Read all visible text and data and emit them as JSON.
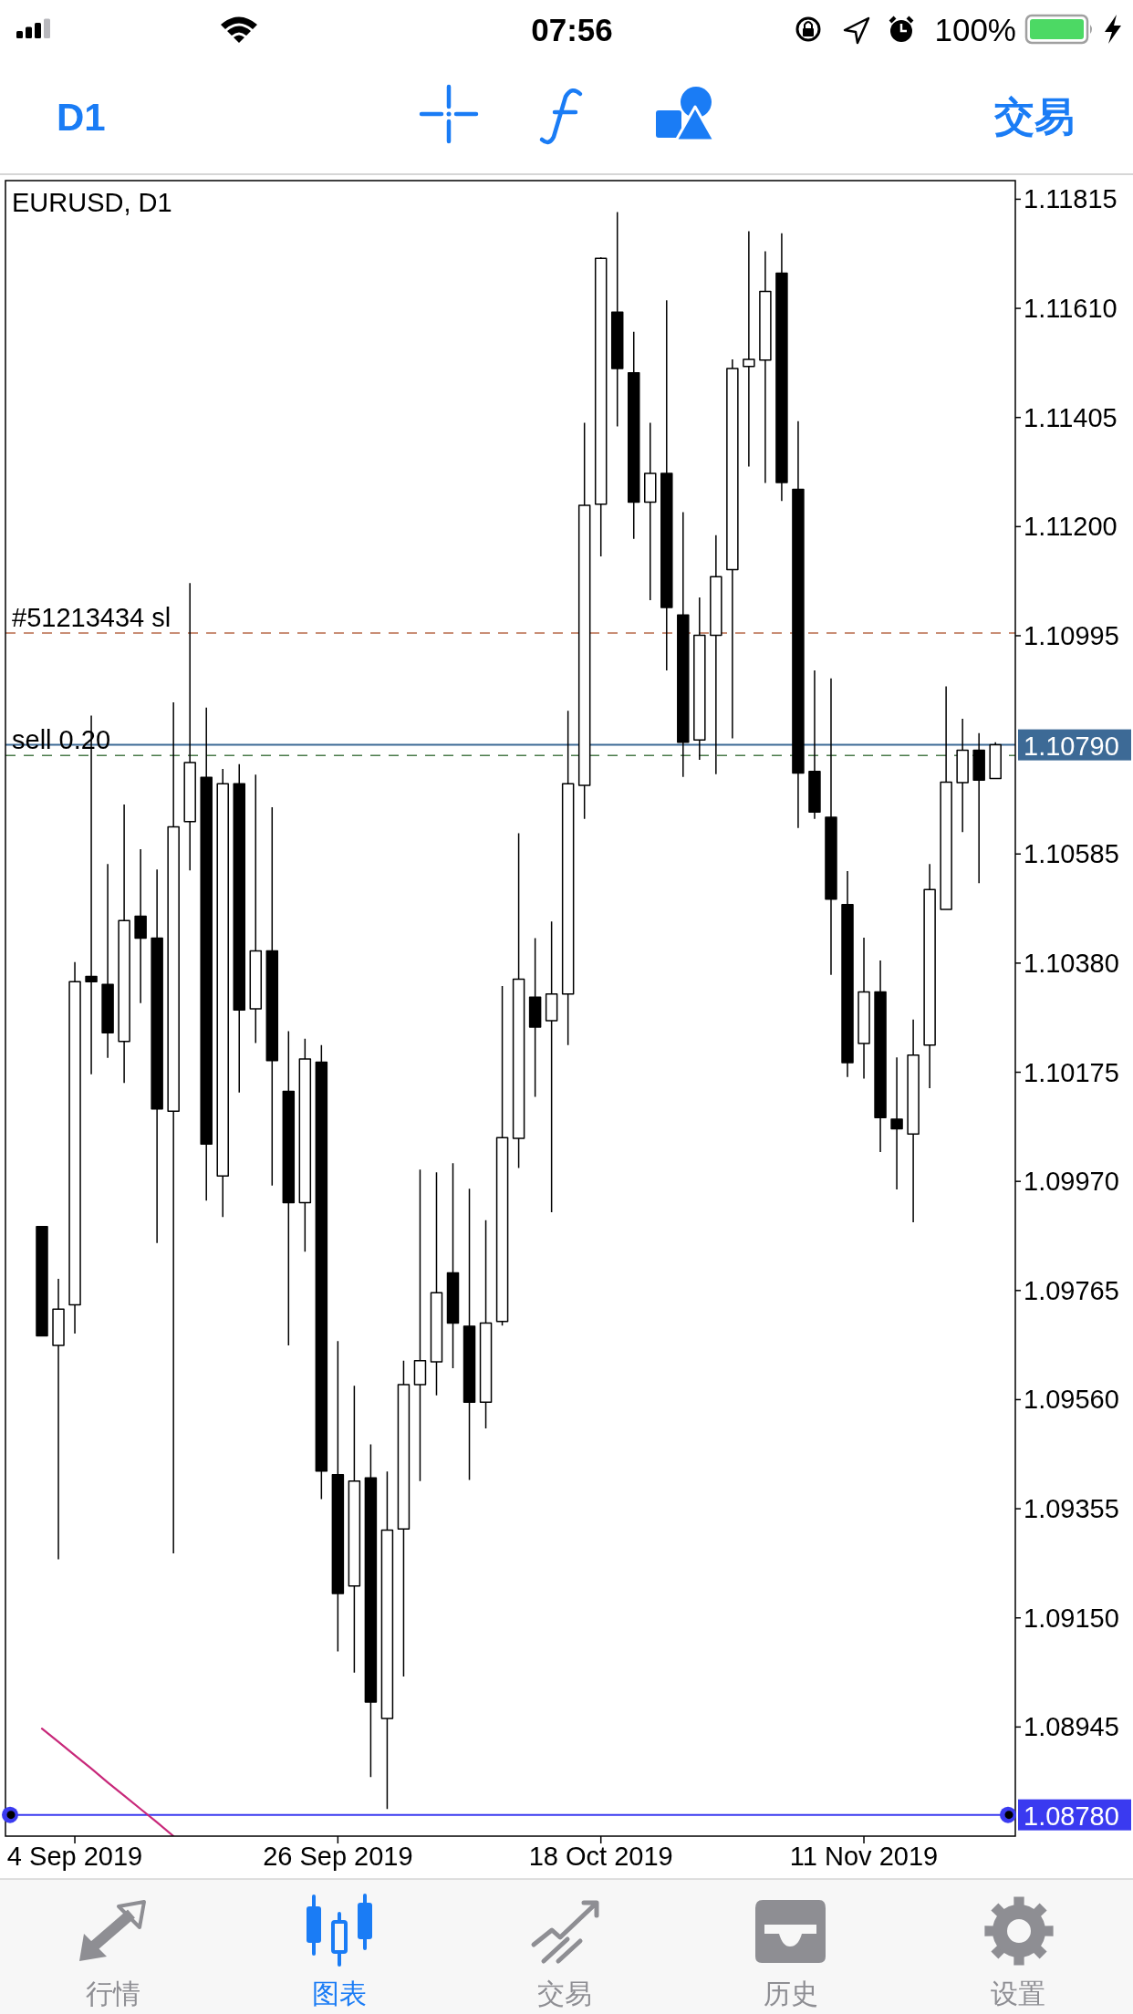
{
  "chart_data": {
    "type": "candlestick",
    "title": "EURUSD, D1",
    "categories": [
      null,
      null,
      "4 Sep 2019",
      null,
      null,
      null,
      null,
      null,
      null,
      null,
      null,
      null,
      null,
      null,
      null,
      null,
      null,
      null,
      "26 Sep 2019",
      null,
      null,
      null,
      null,
      null,
      null,
      null,
      null,
      null,
      null,
      null,
      null,
      null,
      null,
      null,
      "18 Oct 2019",
      null,
      null,
      null,
      null,
      null,
      null,
      null,
      null,
      null,
      null,
      null,
      null,
      null,
      null,
      null,
      "11 Nov 2019",
      null,
      null,
      null,
      null,
      null,
      null,
      null,
      null
    ],
    "ohlc": [
      [
        1.09885,
        1.09885,
        1.0968,
        1.0968
      ],
      [
        1.09662,
        1.09787,
        1.0926,
        1.0973
      ],
      [
        1.09738,
        1.10382,
        1.09684,
        1.10345
      ],
      [
        1.10355,
        1.10845,
        1.10171,
        1.10345
      ],
      [
        1.1034,
        1.10566,
        1.10202,
        1.10249
      ],
      [
        1.10233,
        1.10678,
        1.10155,
        1.1046
      ],
      [
        1.10468,
        1.10594,
        1.10305,
        1.10427
      ],
      [
        1.10427,
        1.10556,
        1.09854,
        1.10106
      ],
      [
        1.10102,
        1.1087,
        1.09271,
        1.10636
      ],
      [
        1.10646,
        1.11094,
        1.10554,
        1.10757
      ],
      [
        1.10729,
        1.1086,
        1.09934,
        1.1004
      ],
      [
        1.0998,
        1.10745,
        1.09903,
        1.10717
      ],
      [
        1.10717,
        1.10754,
        1.10137,
        1.10292
      ],
      [
        1.10294,
        1.10734,
        1.1023,
        1.10403
      ],
      [
        1.10403,
        1.10673,
        1.09962,
        1.10197
      ],
      [
        1.10139,
        1.10252,
        1.09662,
        1.0993
      ],
      [
        1.0993,
        1.10238,
        1.09838,
        1.102
      ],
      [
        1.10194,
        1.10226,
        1.09373,
        1.09426
      ],
      [
        1.09419,
        1.0967,
        1.09087,
        1.09196
      ],
      [
        1.0921,
        1.09586,
        1.09047,
        1.09407
      ],
      [
        1.09413,
        1.09476,
        1.08851,
        1.08992
      ],
      [
        1.08961,
        1.09425,
        1.08791,
        1.09315
      ],
      [
        1.09317,
        1.09633,
        1.0904,
        1.09588
      ],
      [
        1.09588,
        1.09992,
        1.09407,
        1.09633
      ],
      [
        1.09631,
        1.09987,
        1.09568,
        1.09761
      ],
      [
        1.09798,
        1.10004,
        1.09619,
        1.09704
      ],
      [
        1.09698,
        1.09956,
        1.09409,
        1.09555
      ],
      [
        1.09555,
        1.09897,
        1.09506,
        1.09704
      ],
      [
        1.09707,
        1.10337,
        1.09699,
        1.10052
      ],
      [
        1.10051,
        1.10624,
        1.09995,
        1.1035
      ],
      [
        1.10316,
        1.10427,
        1.10129,
        1.1026
      ],
      [
        1.10272,
        1.10458,
        1.09912,
        1.10322
      ],
      [
        1.10322,
        1.10854,
        1.10226,
        1.10717
      ],
      [
        1.10714,
        1.11395,
        1.10651,
        1.1124
      ],
      [
        1.11242,
        1.11706,
        1.11144,
        1.11704
      ],
      [
        1.11603,
        1.11791,
        1.11388,
        1.11497
      ],
      [
        1.11489,
        1.11566,
        1.11177,
        1.11246
      ],
      [
        1.11246,
        1.11395,
        1.11062,
        1.113
      ],
      [
        1.113,
        1.11625,
        1.1093,
        1.11048
      ],
      [
        1.11034,
        1.11227,
        1.1073,
        1.10795
      ],
      [
        1.10799,
        1.11067,
        1.10762,
        1.10996
      ],
      [
        1.10996,
        1.11184,
        1.10735,
        1.11106
      ],
      [
        1.11119,
        1.11514,
        1.10802,
        1.11497
      ],
      [
        1.11501,
        1.11755,
        1.11313,
        1.11514
      ],
      [
        1.11513,
        1.11717,
        1.11282,
        1.11642
      ],
      [
        1.11676,
        1.11751,
        1.11248,
        1.11283
      ],
      [
        1.1127,
        1.11398,
        1.10634,
        1.10737
      ],
      [
        1.1074,
        1.1093,
        1.10651,
        1.10664
      ],
      [
        1.10654,
        1.10915,
        1.10358,
        1.105
      ],
      [
        1.1049,
        1.10553,
        1.10166,
        1.10193
      ],
      [
        1.10229,
        1.10428,
        1.10163,
        1.10326
      ],
      [
        1.10326,
        1.10385,
        1.10025,
        1.1009
      ],
      [
        1.10087,
        1.10203,
        1.09955,
        1.10069
      ],
      [
        1.10059,
        1.10274,
        1.09893,
        1.10207
      ],
      [
        1.10226,
        1.10566,
        1.10145,
        1.10518
      ],
      [
        1.10481,
        1.109,
        1.10481,
        1.1072
      ],
      [
        1.10719,
        1.10839,
        1.10626,
        1.1078
      ],
      [
        1.1078,
        1.10812,
        1.1053,
        1.10724
      ],
      [
        1.10727,
        1.10795,
        1.10727,
        1.1079
      ]
    ],
    "series": [
      {
        "type": "line",
        "color": "#c8287a",
        "values": [
          1.08942,
          1.08917,
          1.08892,
          1.08867,
          1.08841,
          1.08816,
          1.08791,
          1.08766,
          1.0874,
          null,
          null,
          null,
          null,
          null,
          null,
          null,
          null,
          null,
          null,
          null,
          null,
          null,
          null,
          null,
          null,
          null,
          null,
          null,
          null,
          null,
          null,
          null,
          null,
          null,
          null,
          null,
          null,
          null,
          null,
          null,
          null,
          null,
          null,
          null,
          null,
          null,
          null,
          null,
          null,
          null,
          null,
          null,
          null,
          null,
          null,
          null,
          null,
          null,
          null
        ]
      }
    ],
    "ylim": [
      1.0874,
      1.1185
    ],
    "yticks": [
      1.08945,
      {
        "value": 1.0915,
        "label": "1.09150"
      },
      1.09355,
      {
        "value": 1.0956,
        "label": "1.09560"
      },
      1.09765,
      {
        "value": 1.0997,
        "label": "1.09970"
      },
      1.10175,
      {
        "value": 1.1038,
        "label": "1.10380"
      },
      1.10585,
      1.10995,
      {
        "value": 1.112,
        "label": "1.11200"
      },
      1.11405,
      {
        "value": 1.1161,
        "label": "1.11610"
      },
      1.11815
    ],
    "ref_lines": [
      {
        "axis": "y",
        "value": 1.11,
        "label": "#51213434 sl",
        "color": "#b86a4a",
        "line_style": "dashed"
      },
      {
        "axis": "y",
        "value": 1.1077,
        "label": "sell 0.20",
        "color": "#4a7a4a",
        "line_style": "dashed"
      },
      {
        "axis": "y",
        "value": 1.1079,
        "label": "1.10790",
        "color": "#3d6a96",
        "line_style": "solid"
      },
      {
        "axis": "y",
        "value": 1.0878,
        "label": "1.08780",
        "color": "#3a3af0",
        "line_style": "solid"
      }
    ],
    "annotations": [
      "07:56",
      "100%",
      "D1",
      "交易",
      "行情",
      "图表",
      "交易",
      "历史",
      "设置"
    ]
  }
}
